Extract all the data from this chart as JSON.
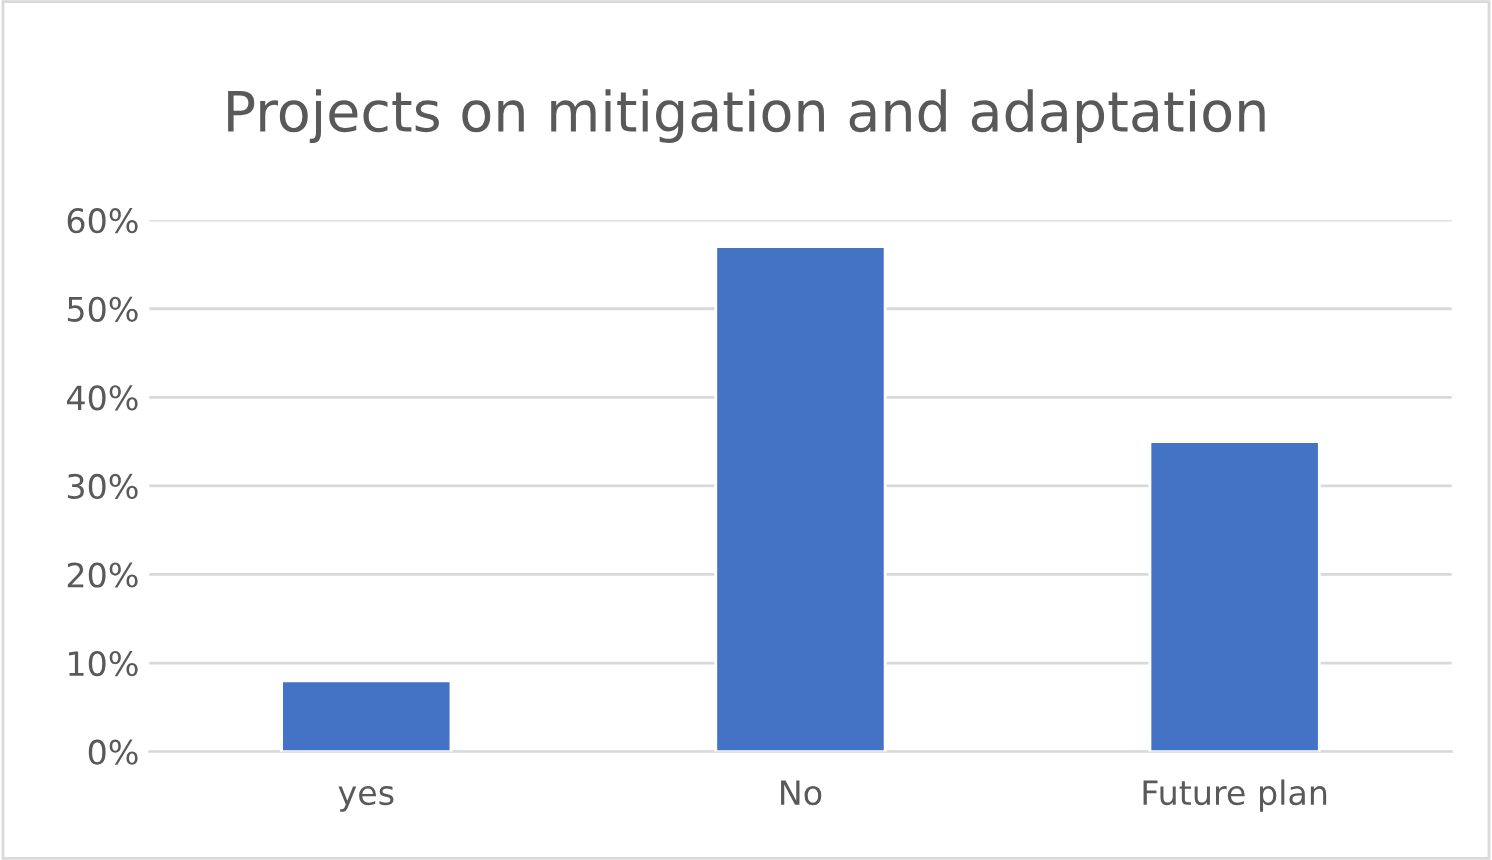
{
  "chart_data": {
    "type": "bar",
    "title": "Projects on mitigation and adaptation",
    "categories": [
      "yes",
      "No",
      "Future plan"
    ],
    "values": [
      8,
      57,
      35
    ],
    "color": "#4472c4",
    "ylim": [
      0,
      60
    ],
    "yticks": [
      {
        "value": 0,
        "label": "0%"
      },
      {
        "value": 10,
        "label": "10%"
      },
      {
        "value": 20,
        "label": "20%"
      },
      {
        "value": 30,
        "label": "30%"
      },
      {
        "value": 40,
        "label": "40%"
      },
      {
        "value": 50,
        "label": "50%"
      },
      {
        "value": 60,
        "label": "60%"
      }
    ],
    "grid": "y",
    "legend": false
  }
}
